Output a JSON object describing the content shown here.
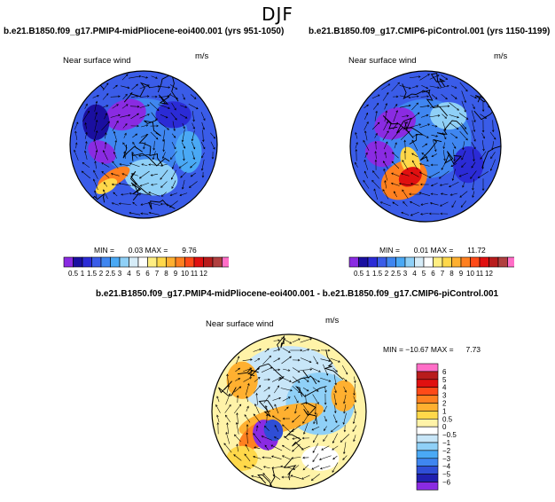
{
  "figure_title": "DJF",
  "panels": [
    {
      "title": "b.e21.B1850.f09_g17.PMIP4-midPliocene-eoi400.001 (yrs 951-1050)",
      "variable": "Near surface wind",
      "units": "m/s",
      "min_label": "MIN =",
      "min_value": "0.03",
      "max_label": "MAX =",
      "max_value": "9.76"
    },
    {
      "title": "b.e21.B1850.f09_g17.CMIP6-piControl.001 (yrs 1150-1199)",
      "variable": "Near surface wind",
      "units": "m/s",
      "min_label": "MIN =",
      "min_value": "0.01",
      "max_label": "MAX =",
      "max_value": "11.72"
    },
    {
      "title": "b.e21.B1850.f09_g17.PMIP4-midPliocene-eoi400.001 - b.e21.B1850.f09_g17.CMIP6-piControl.001",
      "variable": "Near surface wind",
      "units": "m/s",
      "min_label": "MIN =",
      "min_value": "−10.67",
      "max_label": "MAX =",
      "max_value": "7.73"
    }
  ],
  "colors": {
    "abs_scale": [
      "#8a2be2",
      "#1a0fa0",
      "#2b2bd6",
      "#3a5ce8",
      "#3f86f0",
      "#4aa9f5",
      "#8fd0f7",
      "#d6ecf8",
      "#ffffff",
      "#ffee82",
      "#ffd84a",
      "#ffb030",
      "#ff8020",
      "#ff4a18",
      "#e01010",
      "#b81c1c",
      "#b04040",
      "#ff6ec7"
    ],
    "diff_scale": [
      "#8a2be2",
      "#2020b0",
      "#2f4ed6",
      "#3f86f0",
      "#4aa9f5",
      "#8fd0f7",
      "#c8e6f8",
      "#ffffff",
      "#fff3a8",
      "#ffd84a",
      "#ffb030",
      "#ff8020",
      "#ff4a18",
      "#e01010",
      "#b81c1c",
      "#ff6ec7"
    ]
  },
  "chart_data": [
    {
      "type": "heatmap",
      "title": "b.e21.B1850.f09_g17.PMIP4-midPliocene-eoi400.001 (yrs 951-1050)",
      "subtitle": "Near surface wind",
      "units": "m/s",
      "projection": "north polar stereographic",
      "min": 0.03,
      "max": 9.76,
      "colorbar_levels": [
        "0.5",
        "1",
        "1.5",
        "2",
        "2.5",
        "3",
        "4",
        "5",
        "6",
        "7",
        "8",
        "9",
        "10",
        "11",
        "12"
      ]
    },
    {
      "type": "heatmap",
      "title": "b.e21.B1850.f09_g17.CMIP6-piControl.001 (yrs 1150-1199)",
      "subtitle": "Near surface wind",
      "units": "m/s",
      "projection": "north polar stereographic",
      "min": 0.01,
      "max": 11.72,
      "colorbar_levels": [
        "0.5",
        "1",
        "1.5",
        "2",
        "2.5",
        "3",
        "4",
        "5",
        "6",
        "7",
        "8",
        "9",
        "10",
        "11",
        "12"
      ]
    },
    {
      "type": "heatmap",
      "title": "b.e21.B1850.f09_g17.PMIP4-midPliocene-eoi400.001 - b.e21.B1850.f09_g17.CMIP6-piControl.001",
      "subtitle": "Near surface wind",
      "units": "m/s",
      "projection": "north polar stereographic",
      "min": -10.67,
      "max": 7.73,
      "colorbar_levels": [
        "-6",
        "-5",
        "-4",
        "-3",
        "-2",
        "-1",
        "-0.5",
        "0",
        "0.5",
        "1",
        "2",
        "3",
        "4",
        "5",
        "6"
      ]
    }
  ]
}
